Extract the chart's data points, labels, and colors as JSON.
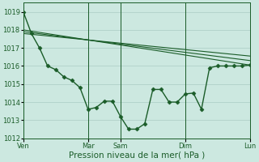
{
  "background_color": "#cce8e0",
  "grid_color": "#aaccc4",
  "line_color": "#1a5c28",
  "marker_color": "#1a5c28",
  "ylim": [
    1012,
    1019.5
  ],
  "yticks": [
    1012,
    1013,
    1014,
    1015,
    1016,
    1017,
    1018,
    1019
  ],
  "xlabel": "Pression niveau de la mer( hPa )",
  "xlabel_fontsize": 7.5,
  "tick_fontsize": 6,
  "day_labels": [
    "Ven",
    "Mar",
    "Sam",
    "Dim",
    "Lun"
  ],
  "day_positions": [
    0,
    96,
    144,
    240,
    336
  ],
  "xlim": [
    0,
    336
  ],
  "series_main": {
    "x": [
      0,
      12,
      24,
      36,
      48,
      60,
      72,
      84,
      96,
      108,
      120,
      132,
      144,
      156,
      168,
      180,
      192,
      204,
      216,
      228,
      240,
      252,
      264,
      276,
      288,
      300,
      312,
      324,
      336
    ],
    "y": [
      1019.0,
      1017.8,
      1017.0,
      1016.0,
      1015.8,
      1015.4,
      1015.2,
      1014.8,
      1013.6,
      1013.7,
      1014.05,
      1014.05,
      1013.2,
      1012.5,
      1012.5,
      1012.8,
      1014.7,
      1014.7,
      1014.0,
      1014.0,
      1014.45,
      1014.5,
      1013.6,
      1015.9,
      1016.0,
      1016.0,
      1016.0,
      1016.0,
      1016.05
    ],
    "marker": "D",
    "markersize": 2.5,
    "linewidth": 1.0
  },
  "series_smooth": [
    {
      "x": [
        0,
        336
      ],
      "y": [
        1018.0,
        1016.05
      ],
      "linewidth": 0.8
    },
    {
      "x": [
        0,
        336
      ],
      "y": [
        1017.9,
        1016.3
      ],
      "linewidth": 0.8
    },
    {
      "x": [
        0,
        336
      ],
      "y": [
        1017.8,
        1016.55
      ],
      "linewidth": 0.8
    }
  ]
}
